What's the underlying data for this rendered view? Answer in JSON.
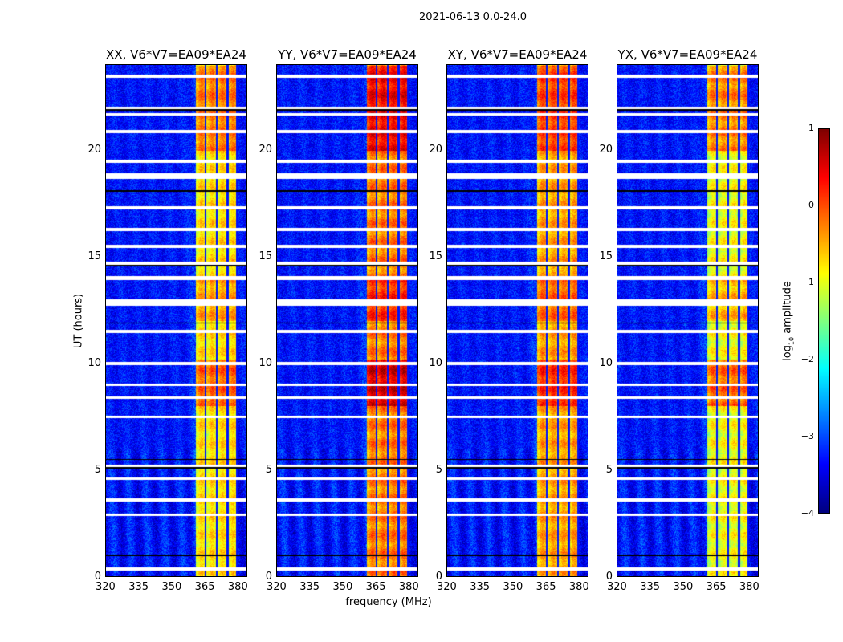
{
  "chart_data": {
    "type": "heatmap",
    "title": "2021-06-13 0.0-24.0",
    "xlabel": "frequency (MHz)",
    "ylabel": "UT (hours)",
    "xlim": [
      320,
      384.4
    ],
    "ylim": [
      0,
      24
    ],
    "xticks": [
      "320",
      "335",
      "350",
      "365",
      "380"
    ],
    "yticks": [
      "0",
      "5",
      "10",
      "15",
      "20"
    ],
    "panels": [
      {
        "title": "XX, V6*V7=EA09*EA24",
        "band_level": -0.8
      },
      {
        "title": "YY, V6*V7=EA09*EA24",
        "band_level": -0.3
      },
      {
        "title": "XY, V6*V7=EA09*EA24",
        "band_level": -0.5
      },
      {
        "title": "YX, V6*V7=EA09*EA24",
        "band_level": -1.0
      }
    ],
    "rfi_band_mhz": [
      361,
      380
    ],
    "rfi_gaps_mhz": [
      365.5,
      370.5,
      375.5,
      380
    ],
    "background_level": -3.3,
    "flagged_hours": [
      0.35,
      2.9,
      3.6,
      4.6,
      5.2,
      7.5,
      8.4,
      9.0,
      10.0,
      11.5,
      12.8,
      12.95,
      14.0,
      14.05,
      14.7,
      15.5,
      16.3,
      17.3,
      18.75,
      18.85,
      19.5,
      20.9,
      21.7,
      22.0,
      23.5
    ],
    "dark_hours": [
      1.0,
      5.5,
      5.1,
      11.9,
      14.6,
      18.1,
      21.9
    ],
    "colorbar": {
      "label_prefix": "log",
      "label_sub": "10",
      "label_suffix": " amplitude",
      "range": [
        -4,
        1
      ],
      "ticks": [
        "1",
        "0",
        "−1",
        "−2",
        "−3",
        "−4"
      ],
      "colormap": "jet"
    }
  }
}
